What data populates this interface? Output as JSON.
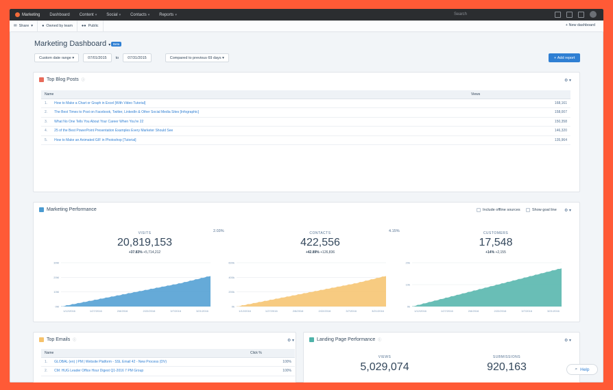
{
  "nav": {
    "brand": "Marketing",
    "items": [
      "Dashboard",
      "Content",
      "Social",
      "Contacts",
      "Reports"
    ],
    "search_placeholder": "Search"
  },
  "subbar": {
    "share": "Share",
    "owned": "Owned by team",
    "public": "Public",
    "new_dashboard": "New dashboard"
  },
  "header": {
    "title": "Marketing Dashboard",
    "badge": "Beta",
    "date_range": "Custom date range",
    "start_date": "07/01/2015",
    "to": "to",
    "end_date": "07/31/2015",
    "compare": "Compared to previous 69 days",
    "add_report": "Add report"
  },
  "blog": {
    "title": "Top Blog Posts",
    "col_name": "Name",
    "col_views": "Views",
    "rows": [
      {
        "idx": "1.",
        "name": "How to Make a Chart or Graph in Excel [With Video Tutorial]",
        "views": "168,161"
      },
      {
        "idx": "2.",
        "name": "The Best Times to Post on Facebook, Twitter, LinkedIn & Other Social Media Sites [Infographic]",
        "views": "158,007"
      },
      {
        "idx": "3.",
        "name": "What No One Tells You About Your Career When You're 22",
        "views": "150,358"
      },
      {
        "idx": "4.",
        "name": "25 of the Best PowerPoint Presentation Examples Every Marketer Should See",
        "views": "146,320"
      },
      {
        "idx": "5.",
        "name": "How to Make an Animated GIF in Photoshop [Tutorial]",
        "views": "135,964"
      }
    ]
  },
  "performance": {
    "title": "Marketing Performance",
    "offline": "Include offline sources",
    "goal": "Show goal line",
    "rate1": "2.03%",
    "rate2": "4.15%",
    "kpis": [
      {
        "label": "VISITS",
        "value": "20,819,153",
        "pct": "+37.83%",
        "delta": "+5,714,212",
        "color": "#4a9bd1"
      },
      {
        "label": "CONTACTS",
        "value": "422,556",
        "pct": "+42.89%",
        "delta": "+126,836",
        "color": "#f6c26b"
      },
      {
        "label": "CUSTOMERS",
        "value": "17,548",
        "pct": "+14%",
        "delta": "+2,155",
        "color": "#4fb3a9"
      }
    ]
  },
  "chart_data": [
    {
      "type": "area",
      "x": [
        "1/12/2016",
        "1/27/2016",
        "2/8/2016",
        "2/22/2016",
        "3/7/2016",
        "3/21/2016"
      ],
      "yticks": [
        "30M",
        "20M",
        "10M",
        "0M"
      ],
      "ylim": [
        0,
        30
      ],
      "series": [
        {
          "values": [
            0,
            4,
            8,
            12,
            16,
            21
          ]
        }
      ]
    },
    {
      "type": "area",
      "x": [
        "1/12/2016",
        "1/27/2016",
        "2/8/2016",
        "2/22/2016",
        "3/7/2016",
        "3/21/2016"
      ],
      "yticks": [
        "600k",
        "400k",
        "200k",
        "0k"
      ],
      "ylim": [
        0,
        600
      ],
      "series": [
        {
          "values": [
            0,
            80,
            160,
            240,
            320,
            420
          ]
        }
      ]
    },
    {
      "type": "area",
      "x": [
        "1/12/2016",
        "1/27/2016",
        "2/8/2016",
        "2/22/2016",
        "3/7/2016",
        "3/21/2016"
      ],
      "yticks": [
        "20k",
        "10k",
        "0k"
      ],
      "ylim": [
        0,
        20
      ],
      "series": [
        {
          "values": [
            0,
            3.5,
            7,
            10.5,
            14,
            17.5
          ]
        }
      ]
    }
  ],
  "emails": {
    "title": "Top Emails",
    "col_name": "Name",
    "col_click": "Click %",
    "rows": [
      {
        "idx": "1.",
        "name": "GLOBAL (en) | PM | Website Platform - SSL Email 42 - New Process (DV)",
        "click": "100%"
      },
      {
        "idx": "2.",
        "name": "CM: HUG Leader Office Hour Digest Q1-2016 7 PM Group",
        "click": "100%"
      }
    ]
  },
  "landing": {
    "title": "Landing Page Performance",
    "views_label": "VIEWS",
    "views": "5,029,074",
    "subs_label": "SUBMISSIONS",
    "subs": "920,163"
  },
  "help": "Help"
}
